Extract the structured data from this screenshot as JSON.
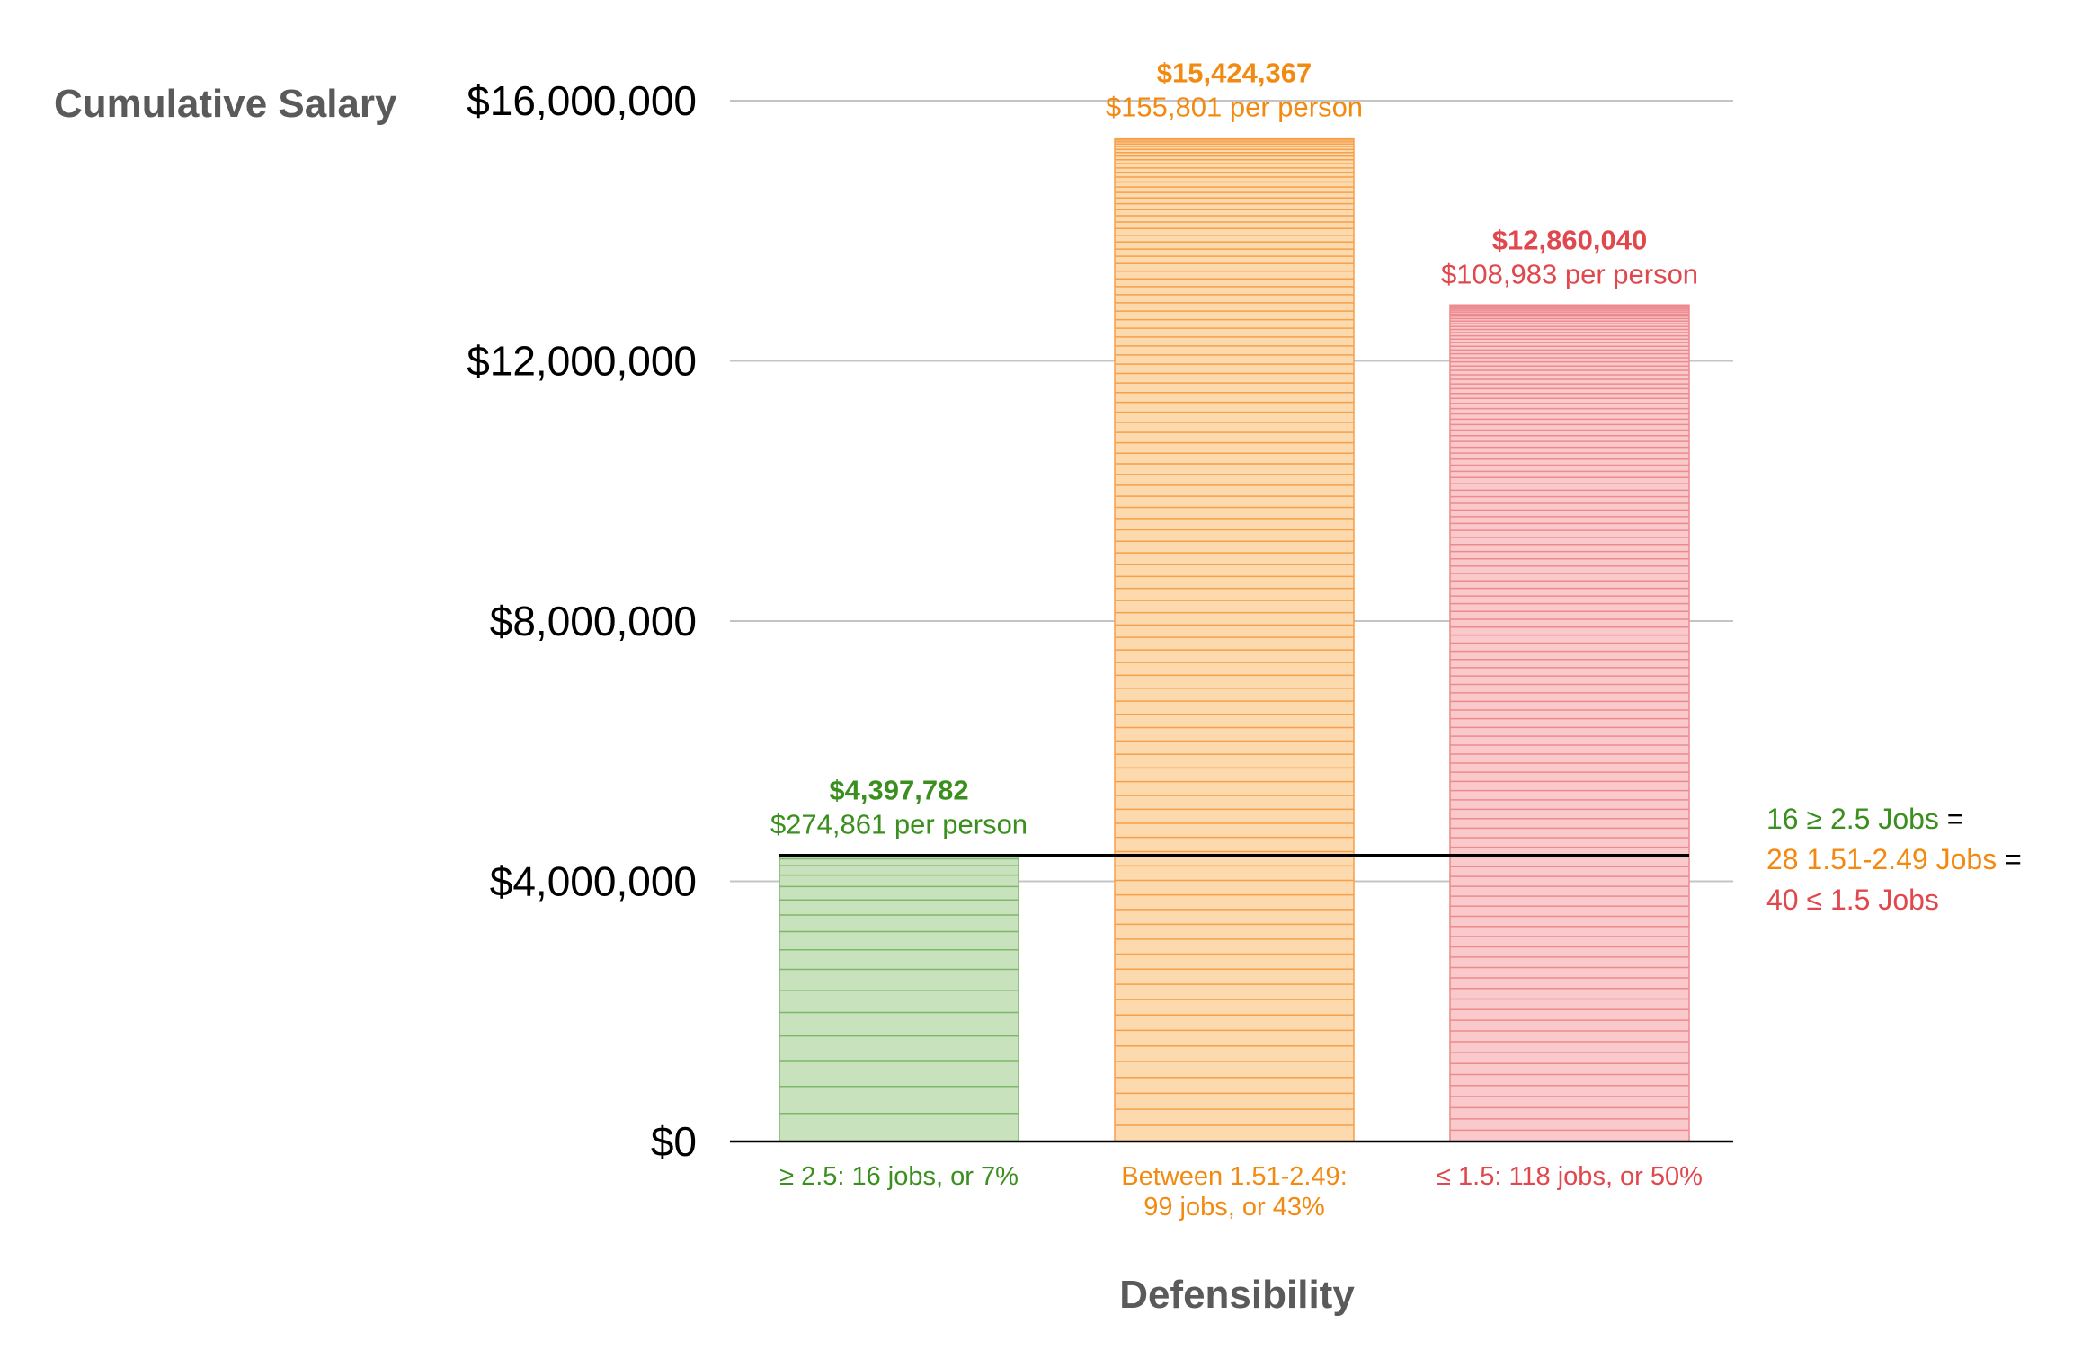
{
  "chart_data": {
    "type": "bar",
    "ylabel": "Cumulative Salary",
    "xlabel": "Defensibility",
    "ylim": [
      0,
      16000000
    ],
    "y_ticks": [
      0,
      4000000,
      8000000,
      12000000,
      16000000
    ],
    "y_tick_labels": [
      "$0",
      "$4,000,000",
      "$8,000,000",
      "$12,000,000",
      "$16,000,000"
    ],
    "grid": true,
    "categories": [
      {
        "label_lines": [
          "≥ 2.5: 16 jobs, or 7%"
        ],
        "value": 4397782,
        "value_label": "$4,397,782",
        "per_person_label": "$274,861 per person",
        "jobs": 16,
        "color": "#3a8f1e",
        "fill": "#c8e2bd",
        "stripe": "#7fb86a"
      },
      {
        "label_lines": [
          "Between 1.51-2.49:",
          "99 jobs, or 43%"
        ],
        "value": 15424367,
        "value_label": "$15,424,367",
        "per_person_label": "$155,801 per person",
        "jobs": 99,
        "color": "#f28a12",
        "fill": "#fdd9ae",
        "stripe": "#f5a04a"
      },
      {
        "label_lines": [
          "≤ 1.5: 118 jobs, or 50%"
        ],
        "value": 12860040,
        "value_label": "$12,860,040",
        "per_person_label": "$108,983 per person",
        "jobs": 118,
        "color": "#e0484d",
        "fill": "#f9c9cb",
        "stripe": "#ec8a8e"
      }
    ],
    "reference_line": {
      "value": 4397782,
      "color": "#000000"
    },
    "annotation": [
      {
        "parts": [
          {
            "text": "16 ≥ 2.5 Jobs",
            "color": "#3a8f1e"
          },
          {
            "text": " =",
            "color": "#000000"
          }
        ]
      },
      {
        "parts": [
          {
            "text": "28 1.51-2.49 Jobs",
            "color": "#f28a12"
          },
          {
            "text": " =",
            "color": "#000000"
          }
        ]
      },
      {
        "parts": [
          {
            "text": "40 ≤ 1.5 Jobs",
            "color": "#e0484d"
          }
        ]
      }
    ]
  }
}
